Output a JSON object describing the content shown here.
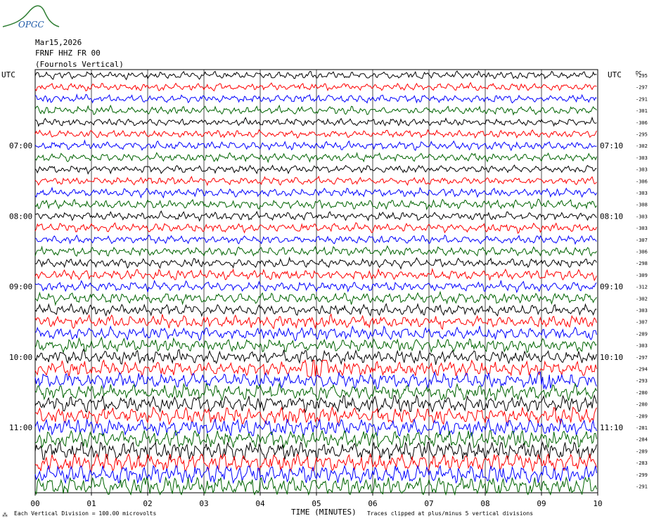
{
  "logo_text": "OPGC",
  "header": {
    "date": "Mar15,2026",
    "station": "FRNF HHZ FR 00",
    "location": "(Fournols Vertical)"
  },
  "utc_left": "UTC",
  "utc_right": "UTC",
  "dc_label": "DC",
  "left_times": [
    "07:00",
    "08:00",
    "09:00",
    "10:00",
    "11:00"
  ],
  "right_times": [
    "07:10",
    "08:10",
    "09:10",
    "10:10",
    "11:10"
  ],
  "xlabel": "TIME (MINUTES)",
  "footer_left": "Each Vertical Division =  100.00 microvolts",
  "footer_right": "Traces clipped at plus/minus 5 vertical divisions",
  "colors": {
    "cycle": [
      "#000000",
      "#ff0000",
      "#0000ff",
      "#006400"
    ],
    "grid": "#000000",
    "logo": "#2e7d32"
  },
  "chart_data": {
    "type": "line",
    "title": "",
    "xlabel": "TIME (MINUTES)",
    "ylabel": "",
    "xlim": [
      0,
      10
    ],
    "x_ticks": [
      "00",
      "01",
      "02",
      "03",
      "04",
      "05",
      "06",
      "07",
      "08",
      "09",
      "10"
    ],
    "rows": 36,
    "minutes_per_row": 10,
    "series_colors": [
      "black",
      "red",
      "blue",
      "green"
    ],
    "dc_offsets": [
      -295,
      -297,
      -291,
      -301,
      -306,
      -295,
      -302,
      -303,
      -303,
      -306,
      -303,
      -308,
      -303,
      -303,
      -307,
      -306,
      -298,
      -309,
      -312,
      -302,
      -303,
      -307,
      -289,
      -303,
      -297,
      -294,
      -293,
      -280,
      -280,
      -289,
      -281,
      -284,
      -289,
      -283,
      -299,
      -291
    ],
    "amplitude_per_row": [
      0.9,
      0.9,
      1.0,
      1.0,
      0.9,
      0.9,
      1.0,
      1.0,
      0.9,
      0.9,
      1.0,
      1.1,
      1.0,
      1.1,
      1.0,
      1.1,
      1.1,
      1.2,
      1.2,
      1.3,
      1.3,
      1.5,
      1.5,
      1.6,
      1.6,
      1.8,
      1.8,
      1.9,
      2.0,
      2.1,
      2.1,
      2.2,
      2.3,
      2.3,
      2.4,
      2.5
    ],
    "events": [
      {
        "row": 25,
        "minute_start": 4.8,
        "minute_end": 5.2,
        "amplitude": 5
      },
      {
        "row": 26,
        "minute_start": 8.9,
        "minute_end": 9.2,
        "amplitude": 5
      }
    ]
  }
}
